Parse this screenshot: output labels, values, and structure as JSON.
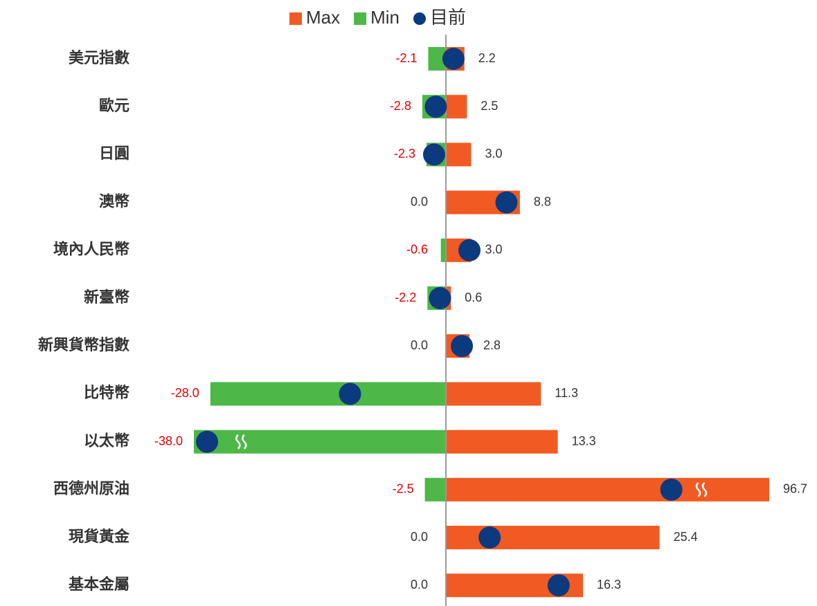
{
  "chart_data": {
    "type": "range_dot",
    "categories": [
      "美元指數",
      "歐元",
      "日圓",
      "澳幣",
      "境內人民幣",
      "新臺幣",
      "新興貨幣指數",
      "比特幣",
      "以太幣",
      "西德州原油",
      "現貨黃金",
      "基本金屬"
    ],
    "series": [
      {
        "name": "Max",
        "color": "#F15A22",
        "values": [
          2.2,
          2.5,
          3.0,
          8.8,
          3.0,
          0.6,
          2.8,
          11.3,
          13.3,
          96.7,
          25.4,
          16.3
        ],
        "value_labels": [
          "2.2",
          "2.5",
          "3.0",
          "8.8",
          "3.0",
          "0.6",
          "2.8",
          "11.3",
          "13.3",
          "96.7",
          "25.4",
          "16.3"
        ]
      },
      {
        "name": "Min",
        "color": "#4DB748",
        "label_color": "#E00000",
        "values": [
          -2.1,
          -2.8,
          -2.3,
          0.0,
          -0.6,
          -2.2,
          0.0,
          -28.0,
          -38.0,
          -2.5,
          0.0,
          0.0
        ],
        "value_labels": [
          "-2.1",
          "-2.8",
          "-2.3",
          "0.0",
          "-0.6",
          "-2.2",
          "0.0",
          "-28.0",
          "-38.0",
          "-2.5",
          "0.0",
          "0.0"
        ]
      },
      {
        "name": "目前",
        "color": "#0B3A7E",
        "values": [
          0.9,
          -1.2,
          -1.4,
          7.2,
          2.8,
          -0.7,
          1.9,
          -11.4,
          -30.0,
          26.8,
          5.2,
          13.4
        ]
      }
    ],
    "xlim": [
      -38,
      96.7
    ],
    "scale_break": {
      "negative": -28,
      "positive": 30
    }
  }
}
